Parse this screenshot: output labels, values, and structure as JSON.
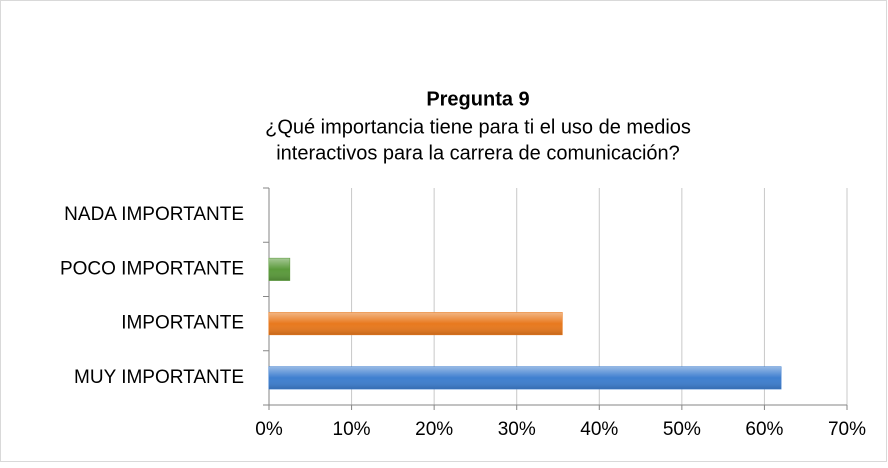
{
  "chart_data": {
    "type": "bar",
    "orientation": "horizontal",
    "title": "Pregunta 9",
    "subtitle": [
      "¿Qué importancia tiene para ti el uso de medios",
      "interactivos para la carrera de comunicación?"
    ],
    "categories": [
      "NADA IMPORTANTE",
      "POCO IMPORTANTE",
      "IMPORTANTE",
      "MUY IMPORTANTE"
    ],
    "values": [
      0,
      2.5,
      35.5,
      62
    ],
    "colors": [
      "#3f7fcf",
      "#5b9a3c",
      "#e8791e",
      "#3f7fcf"
    ],
    "xlim": [
      0,
      70
    ],
    "xticks": [
      {
        "value": 0,
        "label": "0%"
      },
      {
        "value": 10,
        "label": "10%"
      },
      {
        "value": 20,
        "label": "20%"
      },
      {
        "value": 30,
        "label": "30%"
      },
      {
        "value": 40,
        "label": "40%"
      },
      {
        "value": 50,
        "label": "50%"
      },
      {
        "value": 60,
        "label": "60%"
      },
      {
        "value": 70,
        "label": "70%"
      }
    ],
    "grid": true
  }
}
